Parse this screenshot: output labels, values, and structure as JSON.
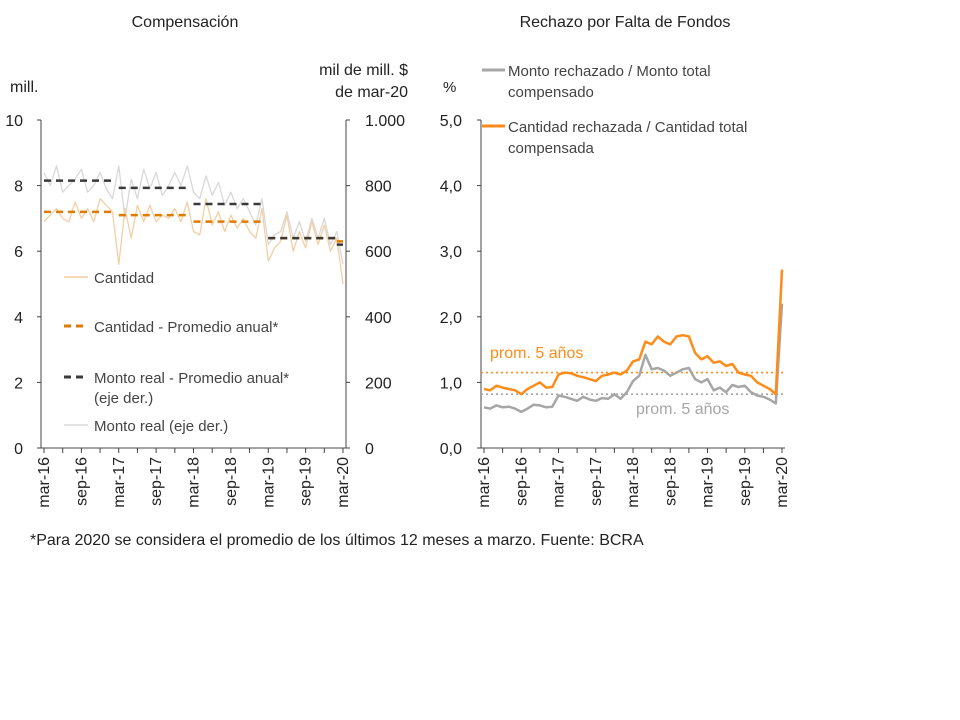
{
  "charts": {
    "left": {
      "title": "Compensación",
      "ylabel_left": "mill.",
      "ylabel_right_line1": "mil de mill. $",
      "ylabel_right_line2": "de mar-20",
      "yticks_left": [
        "0",
        "2",
        "4",
        "6",
        "8",
        "10"
      ],
      "yticks_right": [
        "0",
        "200",
        "400",
        "600",
        "800",
        "1.000"
      ],
      "xticks": [
        "mar-16",
        "sep-16",
        "mar-17",
        "sep-17",
        "mar-18",
        "sep-18",
        "mar-19",
        "sep-19",
        "mar-20"
      ],
      "legend": [
        {
          "label": "Cantidad",
          "line2": ""
        },
        {
          "label": "Cantidad - Promedio anual*",
          "line2": ""
        },
        {
          "label": "Monto real - Promedio anual*",
          "line2": "(eje der.)"
        },
        {
          "label": "Monto real (eje der.)",
          "line2": ""
        }
      ]
    },
    "right": {
      "title": "Rechazo por Falta de Fondos",
      "ylabel": "%",
      "yticks": [
        "0,0",
        "1,0",
        "2,0",
        "3,0",
        "4,0",
        "5,0"
      ],
      "xticks": [
        "mar-16",
        "sep-16",
        "mar-17",
        "sep-17",
        "mar-18",
        "sep-18",
        "mar-19",
        "sep-19",
        "mar-20"
      ],
      "legend": [
        {
          "label": "Monto rechazado / Monto total",
          "line2": "compensado"
        },
        {
          "label": "Cantidad rechazada / Cantidad total",
          "line2": "compensada"
        }
      ],
      "avg_orange_label": "prom. 5 años",
      "avg_gray_label": "prom. 5 años"
    }
  },
  "footnote": "*Para 2020 se considera el promedio de los últimos 12 meses a marzo. Fuente: BCRA",
  "colors": {
    "cantidad": "#f3cfa4",
    "cantidad_avg": "#e07b00",
    "monto_avg": "#3a3a3a",
    "monto": "#d8d8d8",
    "gray_series": "#a6a6a6",
    "orange_series": "#ff8c1a",
    "axis": "#444444"
  },
  "chart_data": [
    {
      "type": "line",
      "title": "Compensación",
      "x_start": "mar-16",
      "x_end": "mar-20",
      "frequency": "monthly",
      "ylabel_left": "mill.",
      "ylim_left": [
        0,
        10
      ],
      "ylabel_right": "mil de mill. $ de mar-20",
      "ylim_right": [
        0,
        1000
      ],
      "series": [
        {
          "name": "Cantidad",
          "axis": "left",
          "values": [
            6.9,
            7.1,
            7.3,
            7.0,
            6.9,
            7.5,
            7.0,
            7.3,
            6.9,
            7.6,
            7.4,
            7.2,
            5.6,
            7.3,
            6.4,
            7.4,
            6.9,
            7.4,
            6.9,
            7.1,
            7.0,
            7.3,
            6.9,
            7.5,
            6.6,
            6.5,
            7.6,
            6.8,
            7.2,
            6.6,
            7.1,
            6.7,
            7.0,
            6.6,
            6.4,
            7.3,
            5.7,
            6.1,
            6.3,
            7.1,
            6.0,
            6.6,
            6.1,
            6.9,
            6.2,
            6.8,
            6.0,
            6.4,
            5.0
          ]
        },
        {
          "name": "Cantidad - Promedio anual*",
          "axis": "left",
          "kind": "step",
          "segments": [
            {
              "from": 0,
              "to": 11,
              "value": 7.2
            },
            {
              "from": 12,
              "to": 23,
              "value": 7.1
            },
            {
              "from": 24,
              "to": 35,
              "value": 6.9
            },
            {
              "from": 36,
              "to": 47,
              "value": 6.4
            },
            {
              "from": 47,
              "to": 48,
              "value": 6.3
            }
          ]
        },
        {
          "name": "Monto real - Promedio anual* (eje der.)",
          "axis": "right",
          "kind": "step",
          "segments": [
            {
              "from": 0,
              "to": 11,
              "value": 815
            },
            {
              "from": 12,
              "to": 23,
              "value": 793
            },
            {
              "from": 24,
              "to": 35,
              "value": 744
            },
            {
              "from": 36,
              "to": 47,
              "value": 640
            },
            {
              "from": 47,
              "to": 48,
              "value": 620
            }
          ]
        },
        {
          "name": "Monto real (eje der.)",
          "axis": "right",
          "values": [
            840,
            800,
            860,
            780,
            800,
            820,
            850,
            780,
            800,
            840,
            790,
            760,
            860,
            700,
            820,
            760,
            850,
            790,
            840,
            770,
            800,
            840,
            800,
            860,
            780,
            760,
            830,
            770,
            810,
            740,
            780,
            730,
            760,
            720,
            680,
            760,
            620,
            650,
            660,
            720,
            640,
            690,
            630,
            700,
            640,
            700,
            620,
            660,
            560
          ]
        }
      ]
    },
    {
      "type": "line",
      "title": "Rechazo por Falta de Fondos",
      "x_start": "mar-16",
      "x_end": "mar-20",
      "frequency": "monthly",
      "ylabel": "%",
      "ylim": [
        0,
        5
      ],
      "series": [
        {
          "name": "Monto rechazado / Monto total compensado",
          "values": [
            0.62,
            0.6,
            0.65,
            0.62,
            0.63,
            0.6,
            0.55,
            0.6,
            0.66,
            0.65,
            0.62,
            0.63,
            0.8,
            0.78,
            0.75,
            0.72,
            0.78,
            0.74,
            0.72,
            0.76,
            0.75,
            0.82,
            0.75,
            0.85,
            1.02,
            1.1,
            1.42,
            1.2,
            1.22,
            1.18,
            1.1,
            1.15,
            1.2,
            1.22,
            1.05,
            1.0,
            1.05,
            0.88,
            0.92,
            0.85,
            0.96,
            0.93,
            0.95,
            0.85,
            0.8,
            0.78,
            0.74,
            0.68,
            2.2
          ]
        },
        {
          "name": "Cantidad rechazada / Cantidad total compensada",
          "values": [
            0.9,
            0.88,
            0.95,
            0.92,
            0.9,
            0.88,
            0.82,
            0.9,
            0.95,
            1.0,
            0.92,
            0.93,
            1.12,
            1.15,
            1.14,
            1.1,
            1.08,
            1.05,
            1.02,
            1.1,
            1.12,
            1.15,
            1.12,
            1.18,
            1.32,
            1.35,
            1.62,
            1.58,
            1.7,
            1.62,
            1.58,
            1.7,
            1.72,
            1.7,
            1.45,
            1.35,
            1.4,
            1.3,
            1.32,
            1.25,
            1.28,
            1.15,
            1.12,
            1.1,
            1.0,
            0.95,
            0.9,
            0.82,
            2.72
          ]
        },
        {
          "name": "prom. 5 años (cantidad)",
          "kind": "hline",
          "value": 1.15
        },
        {
          "name": "prom. 5 años (monto)",
          "kind": "hline",
          "value": 0.82
        }
      ]
    }
  ]
}
